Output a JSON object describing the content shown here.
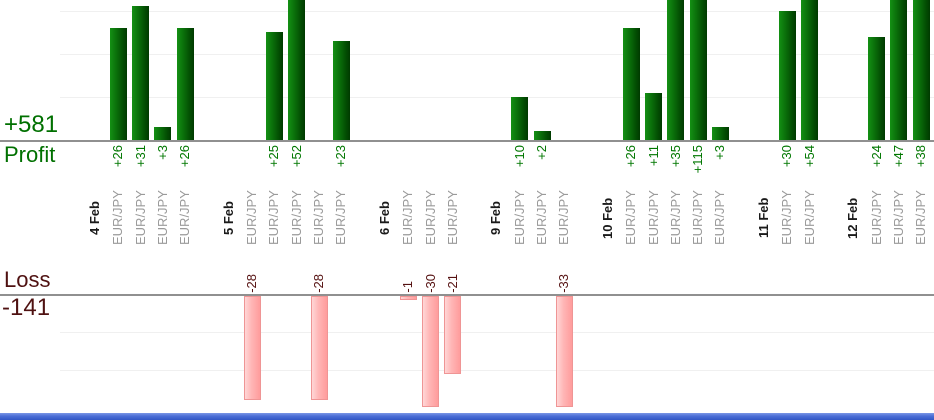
{
  "chart_data": {
    "type": "bar",
    "title": "",
    "description": "Daily trade profit/loss bar chart, profits above upper axis in green, losses below lower axis in pink",
    "x_tick_label": "EUR/JPY",
    "ylabel_profit": "Profit",
    "ylabel_loss": "Loss",
    "totals": {
      "profit": "+581",
      "loss": "-141"
    },
    "grid_interval": 10,
    "grid_on": true,
    "legend_position": "none",
    "groups": [
      {
        "date": "4 Feb",
        "trades": [
          26,
          31,
          3,
          26
        ]
      },
      {
        "date": "5 Feb",
        "trades": [
          -28,
          25,
          52,
          -28,
          23
        ]
      },
      {
        "date": "6 Feb",
        "trades": [
          -1,
          -30,
          -21
        ]
      },
      {
        "date": "9 Feb",
        "trades": [
          10,
          2,
          -33
        ]
      },
      {
        "date": "10 Feb",
        "trades": [
          26,
          11,
          35,
          115,
          3
        ]
      },
      {
        "date": "11 Feb",
        "trades": [
          30,
          54
        ]
      },
      {
        "date": "12 Feb",
        "trades": [
          24,
          47,
          38
        ]
      }
    ],
    "colors": {
      "profit_bar": "#0a6e0a",
      "profit_text": "#007700",
      "loss_bar": "#ffb5b5",
      "loss_text": "#551111",
      "axis_line": "#909090",
      "gridline": "#f0f0f0",
      "date_text": "#1a1a1a",
      "instrument_text": "#9a9a9a",
      "bottom_strip": "#4b6ed6"
    },
    "profit_axis_clipped_top": true,
    "loss_axis_clipped_bottom": true
  }
}
